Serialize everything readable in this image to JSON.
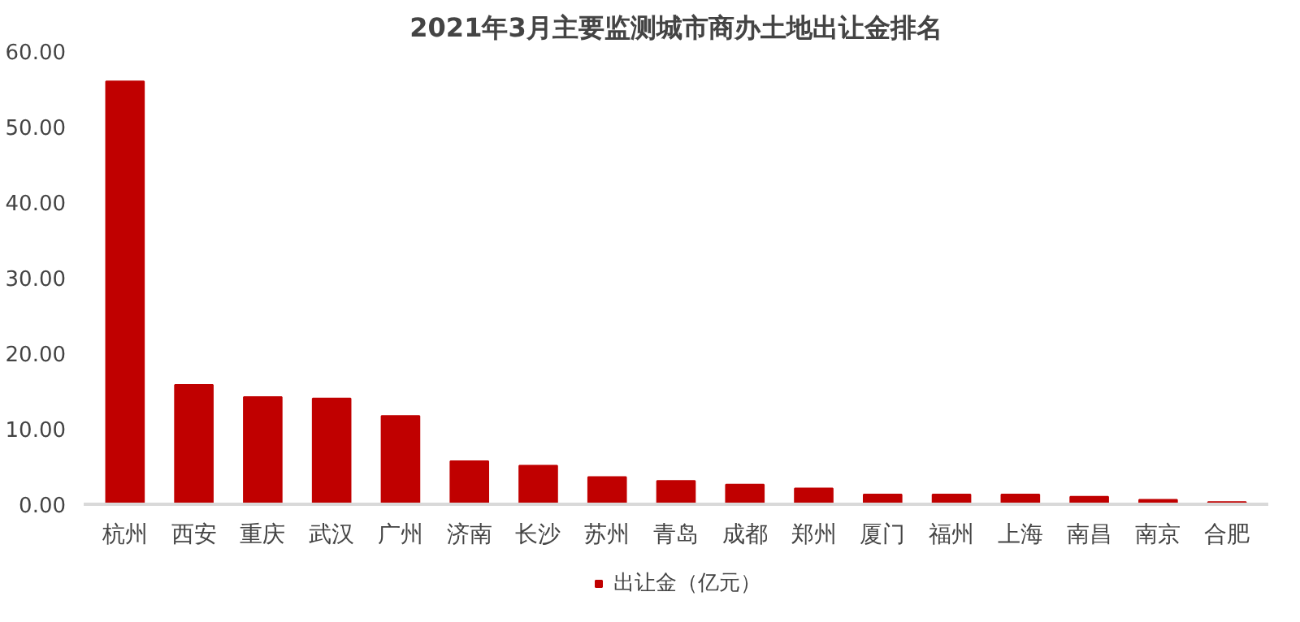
{
  "chart_data": {
    "type": "bar",
    "title": "2021年3月主要监测城市商办土地出让金排名",
    "categories": [
      "杭州",
      "西安",
      "重庆",
      "武汉",
      "广州",
      "济南",
      "长沙",
      "苏州",
      "青岛",
      "成都",
      "郑州",
      "厦门",
      "福州",
      "上海",
      "南昌",
      "南京",
      "合肥"
    ],
    "series": [
      {
        "name": "出让金（亿元）",
        "color": "#c00000",
        "values": [
          56.0,
          15.8,
          14.2,
          14.0,
          11.7,
          5.7,
          5.1,
          3.6,
          3.1,
          2.6,
          2.1,
          1.3,
          1.3,
          1.3,
          1.0,
          0.6,
          0.3
        ]
      }
    ],
    "ylim": [
      0,
      60
    ],
    "yticks": [
      {
        "value": 0,
        "label": "0.00"
      },
      {
        "value": 10,
        "label": "10.00"
      },
      {
        "value": 20,
        "label": "20.00"
      },
      {
        "value": 30,
        "label": "30.00"
      },
      {
        "value": 40,
        "label": "40.00"
      },
      {
        "value": 50,
        "label": "50.00"
      },
      {
        "value": 60,
        "label": "60.00"
      }
    ],
    "grid": false,
    "legend": "bottom"
  }
}
